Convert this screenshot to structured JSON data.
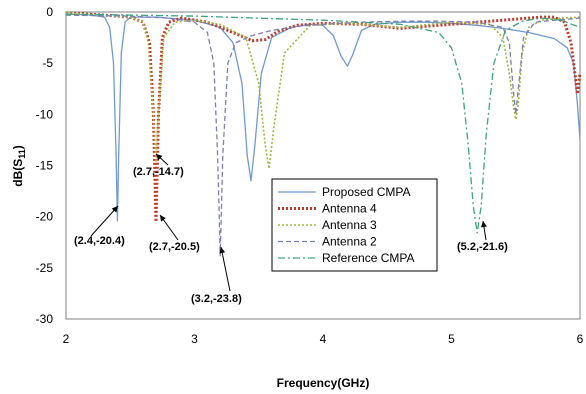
{
  "chart_data": {
    "type": "line",
    "xlabel": "Frequency(GHz)",
    "ylabel": "dB(S11)",
    "ylabel_main": "dB(S",
    "ylabel_sub": "11",
    "ylabel_close": ")",
    "xlim": [
      2,
      6
    ],
    "ylim": [
      -30,
      0
    ],
    "xticks": [
      2,
      3,
      4,
      5,
      6
    ],
    "yticks": [
      0,
      -5,
      -10,
      -15,
      -20,
      -25,
      -30
    ],
    "grid": false,
    "legend_position": "center-right",
    "series": [
      {
        "name": "Proposed CMPA",
        "color": "#6f9bd1",
        "dash": "solid",
        "x": [
          2.0,
          2.2,
          2.3,
          2.34,
          2.37,
          2.39,
          2.4,
          2.41,
          2.43,
          2.46,
          2.5,
          2.7,
          3.0,
          3.2,
          3.3,
          3.37,
          3.41,
          3.44,
          3.47,
          3.52,
          3.6,
          3.75,
          3.9,
          4.0,
          4.08,
          4.14,
          4.19,
          4.23,
          4.3,
          4.4,
          4.6,
          4.8,
          5.0,
          5.2,
          5.4,
          5.6,
          5.8,
          5.9,
          5.95,
          5.98,
          6.0
        ],
        "y": [
          -0.2,
          -0.3,
          -0.5,
          -1.5,
          -5.0,
          -14.0,
          -20.4,
          -14.0,
          -4.0,
          -1.0,
          -0.5,
          -0.5,
          -0.8,
          -1.5,
          -3.0,
          -7.0,
          -14.0,
          -16.5,
          -13.0,
          -6.0,
          -2.5,
          -1.5,
          -1.2,
          -1.3,
          -2.3,
          -4.3,
          -5.3,
          -4.2,
          -1.8,
          -1.2,
          -1.0,
          -1.0,
          -1.1,
          -1.3,
          -1.6,
          -2.0,
          -2.6,
          -3.5,
          -5.0,
          -9.0,
          -12.5
        ]
      },
      {
        "name": "Antenna 4",
        "color": "#c0392b",
        "dash": "dotted",
        "x": [
          2.0,
          2.3,
          2.5,
          2.6,
          2.65,
          2.68,
          2.7,
          2.72,
          2.75,
          2.8,
          2.9,
          3.1,
          3.3,
          3.45,
          3.55,
          3.65,
          3.8,
          4.0,
          4.3,
          4.6,
          4.8,
          5.0,
          5.2,
          5.4,
          5.6,
          5.7,
          5.8,
          5.88,
          5.93,
          5.96,
          5.98,
          6.0
        ],
        "y": [
          -0.1,
          -0.3,
          -0.5,
          -1.0,
          -3.0,
          -10.0,
          -20.5,
          -10.0,
          -2.5,
          -1.0,
          -0.6,
          -1.0,
          -2.0,
          -2.8,
          -2.7,
          -1.9,
          -1.3,
          -1.1,
          -1.2,
          -1.6,
          -1.4,
          -1.2,
          -1.0,
          -0.8,
          -0.6,
          -0.5,
          -0.5,
          -1.0,
          -3.0,
          -6.0,
          -8.0,
          -6.0
        ]
      },
      {
        "name": "Antenna 3",
        "color": "#a5b53a",
        "dash": "dotted",
        "x": [
          2.0,
          2.5,
          2.6,
          2.64,
          2.68,
          2.7,
          2.72,
          2.76,
          2.85,
          3.0,
          3.2,
          3.4,
          3.5,
          3.55,
          3.58,
          3.62,
          3.7,
          3.9,
          4.2,
          4.6,
          5.0,
          5.3,
          5.4,
          5.45,
          5.48,
          5.5,
          5.52,
          5.55,
          5.6,
          5.7,
          5.85,
          6.0
        ],
        "y": [
          -0.1,
          -0.5,
          -1.0,
          -3.0,
          -10.0,
          -14.7,
          -10.0,
          -2.5,
          -1.0,
          -0.8,
          -1.2,
          -2.5,
          -7.0,
          -13.0,
          -15.3,
          -11.0,
          -4.0,
          -1.3,
          -1.1,
          -1.5,
          -1.0,
          -1.2,
          -2.5,
          -6.0,
          -9.0,
          -10.5,
          -9.0,
          -4.0,
          -1.5,
          -0.8,
          -0.6,
          -0.5
        ]
      },
      {
        "name": "Antenna 2",
        "color": "#7b7fb3",
        "dash": "dashed",
        "x": [
          2.0,
          2.5,
          2.8,
          3.0,
          3.1,
          3.15,
          3.18,
          3.2,
          3.22,
          3.26,
          3.32,
          3.45,
          3.6,
          3.8,
          4.0,
          4.3,
          4.6,
          4.9,
          5.2,
          5.4,
          5.45,
          5.48,
          5.5,
          5.52,
          5.56,
          5.65,
          5.8,
          6.0
        ],
        "y": [
          -0.3,
          -0.4,
          -0.6,
          -1.0,
          -2.0,
          -5.0,
          -14.0,
          -23.8,
          -14.0,
          -5.0,
          -3.0,
          -2.3,
          -1.8,
          -1.4,
          -1.2,
          -1.0,
          -0.9,
          -0.9,
          -1.0,
          -1.5,
          -3.0,
          -7.5,
          -10.0,
          -7.5,
          -2.5,
          -1.0,
          -0.8,
          -0.6
        ]
      },
      {
        "name": "Reference CMPA",
        "color": "#3aa67a",
        "dash": "dashdot",
        "x": [
          2.0,
          3.0,
          4.0,
          4.6,
          4.9,
          5.0,
          5.08,
          5.13,
          5.17,
          5.2,
          5.23,
          5.27,
          5.33,
          5.42,
          5.55,
          5.7,
          5.85,
          6.0
        ],
        "y": [
          -0.2,
          -0.4,
          -0.8,
          -1.2,
          -2.0,
          -3.5,
          -7.0,
          -13.0,
          -19.0,
          -21.6,
          -19.0,
          -12.0,
          -5.0,
          -1.8,
          -0.9,
          -0.6,
          -0.8,
          -1.5
        ]
      }
    ],
    "annotations": [
      {
        "text": "(2.4,-20.4)",
        "x": 2.4,
        "y": -20.4
      },
      {
        "text": "(2.7,-14.7)",
        "x": 2.7,
        "y": -14.7
      },
      {
        "text": "(2.7,-20.5)",
        "x": 2.7,
        "y": -20.5
      },
      {
        "text": "(3.2,-23.8)",
        "x": 3.2,
        "y": -23.8
      },
      {
        "text": "(5.2,-21.6)",
        "x": 5.2,
        "y": -21.6
      }
    ]
  }
}
